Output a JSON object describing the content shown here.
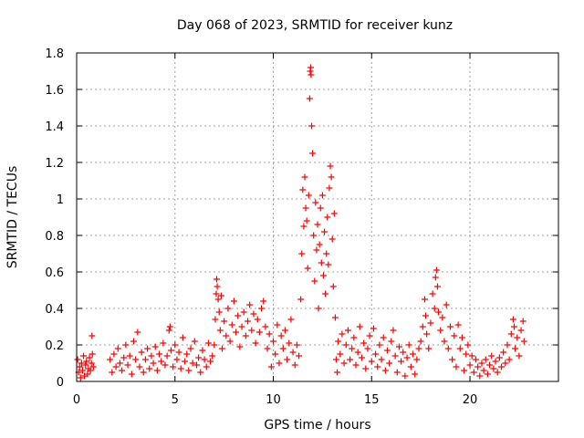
{
  "chart_data": {
    "type": "scatter",
    "title": "Day 068 of 2023, SRMTID for receiver kunz",
    "xlabel": "GPS time / hours",
    "ylabel": "SRMTID / TECUs",
    "xlim": [
      0,
      24.5
    ],
    "ylim": [
      0,
      1.8
    ],
    "grid": true,
    "marker": "+",
    "x_ticks": [
      {
        "value": 0,
        "label": "0"
      },
      {
        "value": 5,
        "label": "5"
      },
      {
        "value": 10,
        "label": "10"
      },
      {
        "value": 15,
        "label": "15"
      },
      {
        "value": 20,
        "label": "20"
      }
    ],
    "y_ticks": [
      {
        "value": 0,
        "label": "0"
      },
      {
        "value": 0.2,
        "label": "0.2"
      },
      {
        "value": 0.4,
        "label": "0.4"
      },
      {
        "value": 0.6,
        "label": "0.6"
      },
      {
        "value": 0.8,
        "label": "0.8"
      },
      {
        "value": 1.0,
        "label": "1"
      },
      {
        "value": 1.2,
        "label": "1.2"
      },
      {
        "value": 1.4,
        "label": "1.4"
      },
      {
        "value": 1.6,
        "label": "1.6"
      },
      {
        "value": 1.8,
        "label": "1.8"
      }
    ],
    "series": [
      {
        "name": "SRMTID",
        "color": "#ff0000",
        "points": [
          [
            0.05,
            0.12
          ],
          [
            0.1,
            0.05
          ],
          [
            0.15,
            0.08
          ],
          [
            0.2,
            0.02
          ],
          [
            0.25,
            0.1
          ],
          [
            0.3,
            0.06
          ],
          [
            0.35,
            0.14
          ],
          [
            0.4,
            0.03
          ],
          [
            0.45,
            0.09
          ],
          [
            0.5,
            0.11
          ],
          [
            0.55,
            0.04
          ],
          [
            0.6,
            0.07
          ],
          [
            0.65,
            0.13
          ],
          [
            0.7,
            0.06
          ],
          [
            0.75,
            0.1
          ],
          [
            0.78,
            0.25
          ],
          [
            0.8,
            0.15
          ],
          [
            0.85,
            0.08
          ],
          [
            1.7,
            0.12
          ],
          [
            1.8,
            0.05
          ],
          [
            1.9,
            0.15
          ],
          [
            2.0,
            0.08
          ],
          [
            2.1,
            0.18
          ],
          [
            2.2,
            0.1
          ],
          [
            2.3,
            0.06
          ],
          [
            2.4,
            0.13
          ],
          [
            2.5,
            0.2
          ],
          [
            2.6,
            0.09
          ],
          [
            2.7,
            0.14
          ],
          [
            2.8,
            0.04
          ],
          [
            2.9,
            0.22
          ],
          [
            3.0,
            0.12
          ],
          [
            3.1,
            0.27
          ],
          [
            3.2,
            0.08
          ],
          [
            3.3,
            0.16
          ],
          [
            3.4,
            0.05
          ],
          [
            3.5,
            0.12
          ],
          [
            3.6,
            0.18
          ],
          [
            3.7,
            0.07
          ],
          [
            3.8,
            0.14
          ],
          [
            3.9,
            0.1
          ],
          [
            4.0,
            0.19
          ],
          [
            4.1,
            0.06
          ],
          [
            4.2,
            0.15
          ],
          [
            4.3,
            0.11
          ],
          [
            4.4,
            0.21
          ],
          [
            4.5,
            0.09
          ],
          [
            4.6,
            0.14
          ],
          [
            4.7,
            0.28
          ],
          [
            4.75,
            0.3
          ],
          [
            4.8,
            0.17
          ],
          [
            4.9,
            0.08
          ],
          [
            5.0,
            0.2
          ],
          [
            5.1,
            0.12
          ],
          [
            5.2,
            0.16
          ],
          [
            5.3,
            0.07
          ],
          [
            5.4,
            0.24
          ],
          [
            5.5,
            0.11
          ],
          [
            5.6,
            0.15
          ],
          [
            5.7,
            0.06
          ],
          [
            5.8,
            0.18
          ],
          [
            5.9,
            0.1
          ],
          [
            6.0,
            0.22
          ],
          [
            6.1,
            0.09
          ],
          [
            6.2,
            0.13
          ],
          [
            6.3,
            0.05
          ],
          [
            6.4,
            0.17
          ],
          [
            6.5,
            0.12
          ],
          [
            6.6,
            0.08
          ],
          [
            6.7,
            0.21
          ],
          [
            6.8,
            0.11
          ],
          [
            6.9,
            0.14
          ],
          [
            7.0,
            0.2
          ],
          [
            7.05,
            0.34
          ],
          [
            7.1,
            0.48
          ],
          [
            7.12,
            0.56
          ],
          [
            7.15,
            0.52
          ],
          [
            7.2,
            0.45
          ],
          [
            7.25,
            0.38
          ],
          [
            7.3,
            0.28
          ],
          [
            7.35,
            0.47
          ],
          [
            7.4,
            0.18
          ],
          [
            7.5,
            0.33
          ],
          [
            7.6,
            0.25
          ],
          [
            7.7,
            0.4
          ],
          [
            7.8,
            0.22
          ],
          [
            7.9,
            0.31
          ],
          [
            8.0,
            0.44
          ],
          [
            8.1,
            0.27
          ],
          [
            8.2,
            0.36
          ],
          [
            8.3,
            0.19
          ],
          [
            8.4,
            0.3
          ],
          [
            8.5,
            0.38
          ],
          [
            8.6,
            0.25
          ],
          [
            8.7,
            0.33
          ],
          [
            8.8,
            0.42
          ],
          [
            8.9,
            0.28
          ],
          [
            9.0,
            0.37
          ],
          [
            9.1,
            0.21
          ],
          [
            9.2,
            0.34
          ],
          [
            9.3,
            0.27
          ],
          [
            9.4,
            0.4
          ],
          [
            9.5,
            0.44
          ],
          [
            9.6,
            0.3
          ],
          [
            9.7,
            0.18
          ],
          [
            9.8,
            0.26
          ],
          [
            9.9,
            0.08
          ],
          [
            10.0,
            0.22
          ],
          [
            10.1,
            0.15
          ],
          [
            10.2,
            0.31
          ],
          [
            10.3,
            0.1
          ],
          [
            10.4,
            0.25
          ],
          [
            10.5,
            0.18
          ],
          [
            10.6,
            0.28
          ],
          [
            10.7,
            0.12
          ],
          [
            10.8,
            0.21
          ],
          [
            10.9,
            0.34
          ],
          [
            11.0,
            0.16
          ],
          [
            11.1,
            0.09
          ],
          [
            11.2,
            0.2
          ],
          [
            11.3,
            0.14
          ],
          [
            11.4,
            0.45
          ],
          [
            11.45,
            0.7
          ],
          [
            11.5,
            1.05
          ],
          [
            11.55,
            0.85
          ],
          [
            11.6,
            1.12
          ],
          [
            11.65,
            0.95
          ],
          [
            11.7,
            0.88
          ],
          [
            11.75,
            0.62
          ],
          [
            11.8,
            1.02
          ],
          [
            11.85,
            1.55
          ],
          [
            11.88,
            1.7
          ],
          [
            11.9,
            1.72
          ],
          [
            11.92,
            1.68
          ],
          [
            11.95,
            1.4
          ],
          [
            12.0,
            1.25
          ],
          [
            12.05,
            0.8
          ],
          [
            12.1,
            0.55
          ],
          [
            12.15,
            0.98
          ],
          [
            12.2,
            0.72
          ],
          [
            12.25,
            0.86
          ],
          [
            12.3,
            0.4
          ],
          [
            12.35,
            0.75
          ],
          [
            12.4,
            0.95
          ],
          [
            12.45,
            0.65
          ],
          [
            12.5,
            1.02
          ],
          [
            12.55,
            0.58
          ],
          [
            12.6,
            0.82
          ],
          [
            12.65,
            0.48
          ],
          [
            12.7,
            0.7
          ],
          [
            12.75,
            0.9
          ],
          [
            12.8,
            0.64
          ],
          [
            12.85,
            1.06
          ],
          [
            12.9,
            1.18
          ],
          [
            12.95,
            1.12
          ],
          [
            13.0,
            0.78
          ],
          [
            13.05,
            0.52
          ],
          [
            13.1,
            0.92
          ],
          [
            13.15,
            0.35
          ],
          [
            13.2,
            0.12
          ],
          [
            13.25,
            0.05
          ],
          [
            13.3,
            0.22
          ],
          [
            13.4,
            0.15
          ],
          [
            13.5,
            0.26
          ],
          [
            13.6,
            0.1
          ],
          [
            13.7,
            0.2
          ],
          [
            13.8,
            0.28
          ],
          [
            13.9,
            0.12
          ],
          [
            14.0,
            0.18
          ],
          [
            14.1,
            0.24
          ],
          [
            14.2,
            0.09
          ],
          [
            14.3,
            0.16
          ],
          [
            14.4,
            0.3
          ],
          [
            14.5,
            0.13
          ],
          [
            14.6,
            0.21
          ],
          [
            14.7,
            0.07
          ],
          [
            14.8,
            0.18
          ],
          [
            14.9,
            0.25
          ],
          [
            15.0,
            0.11
          ],
          [
            15.1,
            0.29
          ],
          [
            15.2,
            0.15
          ],
          [
            15.3,
            0.08
          ],
          [
            15.4,
            0.2
          ],
          [
            15.5,
            0.12
          ],
          [
            15.6,
            0.24
          ],
          [
            15.7,
            0.06
          ],
          [
            15.8,
            0.17
          ],
          [
            15.9,
            0.1
          ],
          [
            16.0,
            0.22
          ],
          [
            16.1,
            0.28
          ],
          [
            16.2,
            0.14
          ],
          [
            16.3,
            0.05
          ],
          [
            16.4,
            0.19
          ],
          [
            16.5,
            0.11
          ],
          [
            16.6,
            0.16
          ],
          [
            16.7,
            0.03
          ],
          [
            16.8,
            0.13
          ],
          [
            16.9,
            0.2
          ],
          [
            17.0,
            0.08
          ],
          [
            17.1,
            0.15
          ],
          [
            17.2,
            0.04
          ],
          [
            17.3,
            0.12
          ],
          [
            17.4,
            0.18
          ],
          [
            17.5,
            0.22
          ],
          [
            17.6,
            0.3
          ],
          [
            17.7,
            0.45
          ],
          [
            17.75,
            0.36
          ],
          [
            17.8,
            0.26
          ],
          [
            17.9,
            0.18
          ],
          [
            18.0,
            0.32
          ],
          [
            18.1,
            0.48
          ],
          [
            18.2,
            0.4
          ],
          [
            18.25,
            0.57
          ],
          [
            18.3,
            0.61
          ],
          [
            18.35,
            0.52
          ],
          [
            18.4,
            0.38
          ],
          [
            18.5,
            0.28
          ],
          [
            18.6,
            0.35
          ],
          [
            18.7,
            0.22
          ],
          [
            18.8,
            0.42
          ],
          [
            18.9,
            0.18
          ],
          [
            19.0,
            0.3
          ],
          [
            19.1,
            0.12
          ],
          [
            19.2,
            0.25
          ],
          [
            19.3,
            0.08
          ],
          [
            19.4,
            0.31
          ],
          [
            19.5,
            0.18
          ],
          [
            19.6,
            0.24
          ],
          [
            19.7,
            0.06
          ],
          [
            19.8,
            0.15
          ],
          [
            19.9,
            0.2
          ],
          [
            20.0,
            0.09
          ],
          [
            20.1,
            0.14
          ],
          [
            20.2,
            0.05
          ],
          [
            20.3,
            0.12
          ],
          [
            20.4,
            0.08
          ],
          [
            20.5,
            0.03
          ],
          [
            20.6,
            0.1
          ],
          [
            20.7,
            0.06
          ],
          [
            20.8,
            0.12
          ],
          [
            20.9,
            0.04
          ],
          [
            21.0,
            0.09
          ],
          [
            21.1,
            0.14
          ],
          [
            21.2,
            0.07
          ],
          [
            21.3,
            0.11
          ],
          [
            21.4,
            0.05
          ],
          [
            21.5,
            0.13
          ],
          [
            21.6,
            0.08
          ],
          [
            21.7,
            0.16
          ],
          [
            21.8,
            0.1
          ],
          [
            21.9,
            0.2
          ],
          [
            22.0,
            0.12
          ],
          [
            22.1,
            0.26
          ],
          [
            22.2,
            0.34
          ],
          [
            22.25,
            0.3
          ],
          [
            22.3,
            0.18
          ],
          [
            22.4,
            0.24
          ],
          [
            22.5,
            0.14
          ],
          [
            22.6,
            0.28
          ],
          [
            22.7,
            0.33
          ],
          [
            22.75,
            0.22
          ]
        ]
      }
    ]
  }
}
